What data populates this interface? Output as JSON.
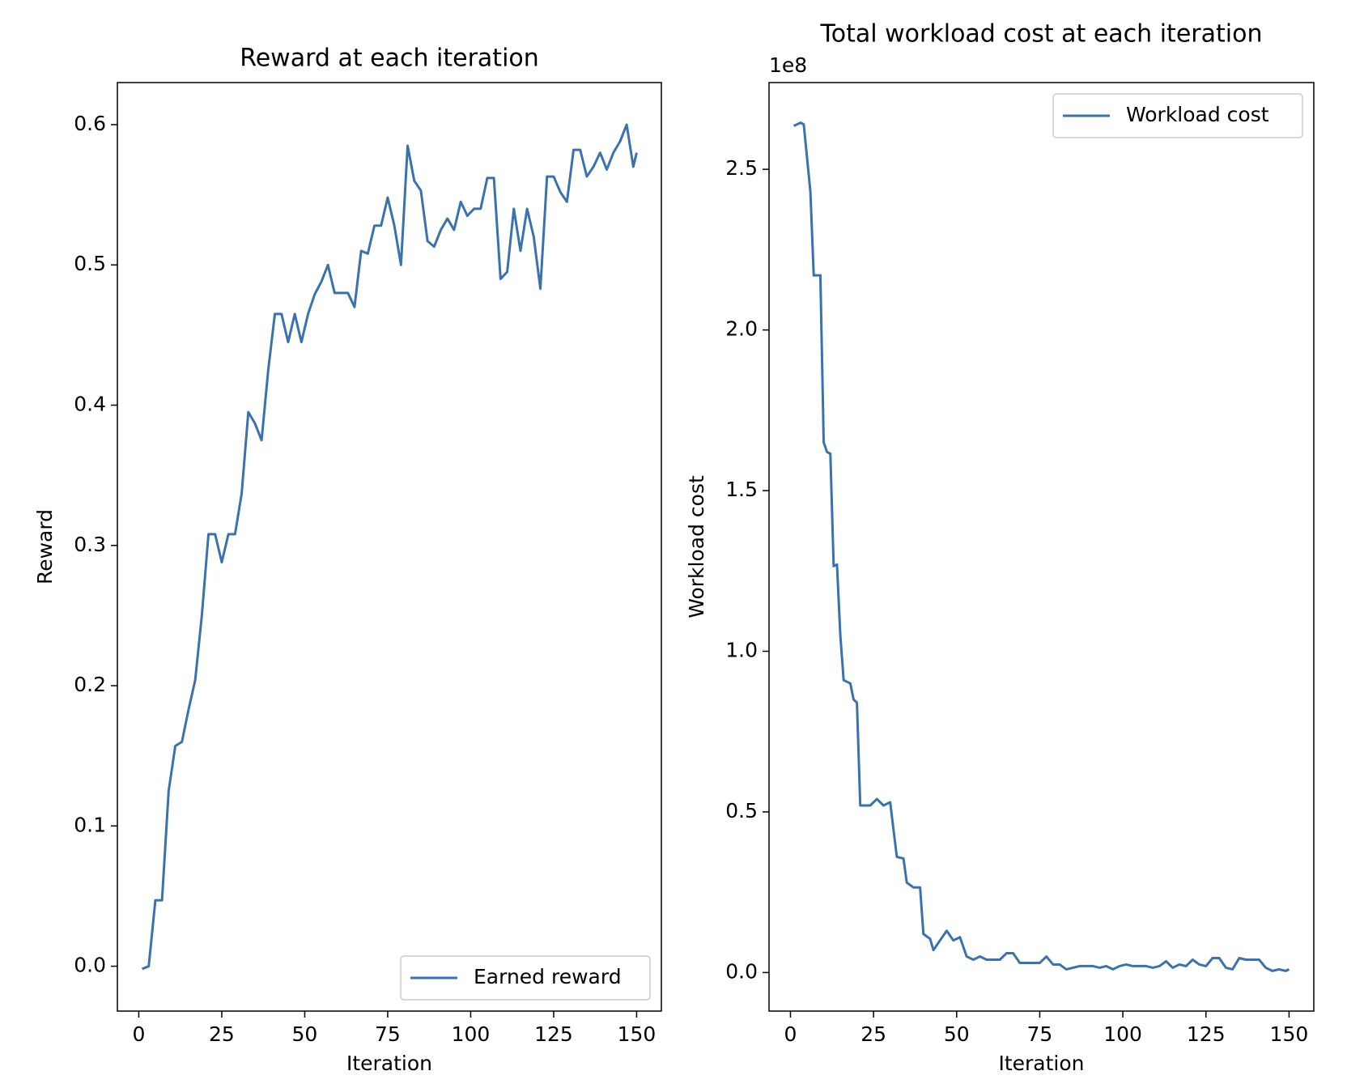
{
  "chart_data": [
    {
      "type": "line",
      "title": "Reward at each iteration",
      "x_label": "Iteration",
      "y_label": "Reward",
      "x": [
        1,
        3,
        5,
        7,
        9,
        11,
        13,
        15,
        17,
        19,
        21,
        23,
        25,
        27,
        29,
        31,
        33,
        35,
        37,
        39,
        41,
        43,
        45,
        47,
        49,
        51,
        53,
        55,
        57,
        59,
        61,
        63,
        65,
        67,
        69,
        71,
        73,
        75,
        77,
        79,
        81,
        83,
        85,
        87,
        89,
        91,
        93,
        95,
        97,
        99,
        101,
        103,
        105,
        107,
        109,
        111,
        113,
        115,
        117,
        119,
        121,
        123,
        125,
        127,
        129,
        131,
        133,
        135,
        137,
        139,
        141,
        143,
        145,
        147,
        149,
        150
      ],
      "series": [
        {
          "name": "Earned reward",
          "color": "#3a72b0",
          "values": [
            -0.002,
            0.0,
            0.047,
            0.047,
            0.125,
            0.157,
            0.16,
            0.183,
            0.204,
            0.25,
            0.308,
            0.308,
            0.288,
            0.308,
            0.308,
            0.337,
            0.395,
            0.387,
            0.375,
            0.425,
            0.465,
            0.465,
            0.445,
            0.465,
            0.445,
            0.465,
            0.479,
            0.488,
            0.5,
            0.48,
            0.48,
            0.48,
            0.47,
            0.51,
            0.508,
            0.528,
            0.528,
            0.548,
            0.528,
            0.5,
            0.585,
            0.56,
            0.553,
            0.517,
            0.513,
            0.525,
            0.533,
            0.525,
            0.545,
            0.535,
            0.54,
            0.54,
            0.562,
            0.562,
            0.49,
            0.495,
            0.54,
            0.51,
            0.54,
            0.52,
            0.483,
            0.563,
            0.563,
            0.552,
            0.545,
            0.582,
            0.582,
            0.563,
            0.57,
            0.58,
            0.568,
            0.58,
            0.588,
            0.6,
            0.57,
            0.58
          ]
        }
      ],
      "xlim": [
        -6.45,
        157.45
      ],
      "ylim": [
        -0.032,
        0.63
      ],
      "xticks": [
        0,
        25,
        50,
        75,
        100,
        125,
        150
      ],
      "yticks": [
        {
          "value": 0,
          "label": "0.0"
        },
        0.1,
        0.2,
        0.3,
        0.4,
        0.5,
        0.6
      ],
      "legend": "lower right"
    },
    {
      "type": "line",
      "title": "Total workload cost at each iteration",
      "x_label": "Iteration",
      "y_label": "Workload cost",
      "y_offset_label": "1e8",
      "x": [
        1,
        3,
        4,
        6,
        7,
        9,
        10,
        11,
        12,
        13,
        14,
        15,
        16,
        18,
        19,
        20,
        21,
        24,
        26,
        28,
        30,
        32,
        34,
        35,
        37,
        39,
        40,
        42,
        43,
        45,
        47,
        49,
        51,
        53,
        55,
        57,
        59,
        61,
        63,
        65,
        67,
        69,
        71,
        73,
        75,
        77,
        79,
        81,
        83,
        85,
        87,
        89,
        91,
        93,
        95,
        97,
        99,
        101,
        103,
        105,
        107,
        109,
        111,
        113,
        115,
        117,
        119,
        121,
        123,
        125,
        127,
        129,
        131,
        133,
        135,
        137,
        139,
        141,
        143,
        145,
        147,
        149,
        150
      ],
      "series": [
        {
          "name": "Workload cost",
          "color": "#3a72b0",
          "values": [
            2.635,
            2.645,
            2.64,
            2.43,
            2.17,
            2.17,
            1.65,
            1.62,
            1.615,
            1.265,
            1.27,
            1.05,
            0.91,
            0.9,
            0.85,
            0.84,
            0.52,
            0.52,
            0.54,
            0.52,
            0.53,
            0.36,
            0.355,
            0.28,
            0.265,
            0.265,
            0.12,
            0.105,
            0.07,
            0.1,
            0.13,
            0.1,
            0.11,
            0.05,
            0.04,
            0.05,
            0.04,
            0.04,
            0.04,
            0.06,
            0.06,
            0.03,
            0.03,
            0.03,
            0.03,
            0.05,
            0.025,
            0.025,
            0.01,
            0.015,
            0.02,
            0.02,
            0.02,
            0.015,
            0.02,
            0.01,
            0.02,
            0.025,
            0.02,
            0.02,
            0.02,
            0.015,
            0.02,
            0.035,
            0.015,
            0.025,
            0.02,
            0.04,
            0.025,
            0.02,
            0.045,
            0.045,
            0.015,
            0.01,
            0.045,
            0.04,
            0.04,
            0.04,
            0.015,
            0.005,
            0.01,
            0.005,
            0.01
          ]
        }
      ],
      "xlim": [
        -6.45,
        157.45
      ],
      "ylim": [
        -0.12,
        2.77
      ],
      "xticks": [
        0,
        25,
        50,
        75,
        100,
        125,
        150
      ],
      "yticks": [
        {
          "value": 0,
          "label": "0.0"
        },
        0.5,
        {
          "value": 1,
          "label": "1.0"
        },
        1.5,
        {
          "value": 2,
          "label": "2.0"
        },
        2.5
      ],
      "legend": "upper right"
    }
  ]
}
